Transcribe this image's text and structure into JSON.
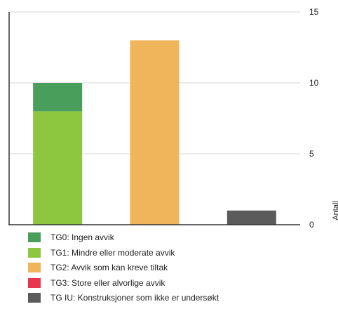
{
  "chart_data": {
    "type": "bar",
    "stacked": true,
    "categories": [
      "",
      "",
      ""
    ],
    "series": [
      {
        "name": "TG0: Ingen avvik",
        "color": "#4a9e5c",
        "values": [
          2,
          0,
          0
        ]
      },
      {
        "name": "TG1: Mindre eller moderate avvik",
        "color": "#8dc63f",
        "values": [
          8,
          0,
          0
        ]
      },
      {
        "name": "TG2: Avvik som kan kreve tiltak",
        "color": "#f0b55a",
        "values": [
          0,
          13,
          0
        ]
      },
      {
        "name": "TG3: Store eller alvorlige avvik",
        "color": "#e8384f",
        "values": [
          0,
          0,
          0
        ]
      },
      {
        "name": "TG IU: Konstruksjoner som ikke er undersøkt",
        "color": "#5b5b5b",
        "values": [
          0,
          0,
          1
        ]
      }
    ],
    "stack_order": [
      1,
      0,
      2,
      3,
      4
    ],
    "ylabel": "Antall",
    "yaxis_position": "right",
    "yticks": [
      0,
      5,
      10,
      15
    ],
    "ylim": [
      0,
      15
    ],
    "grid": true,
    "legend_position": "bottom-left"
  }
}
